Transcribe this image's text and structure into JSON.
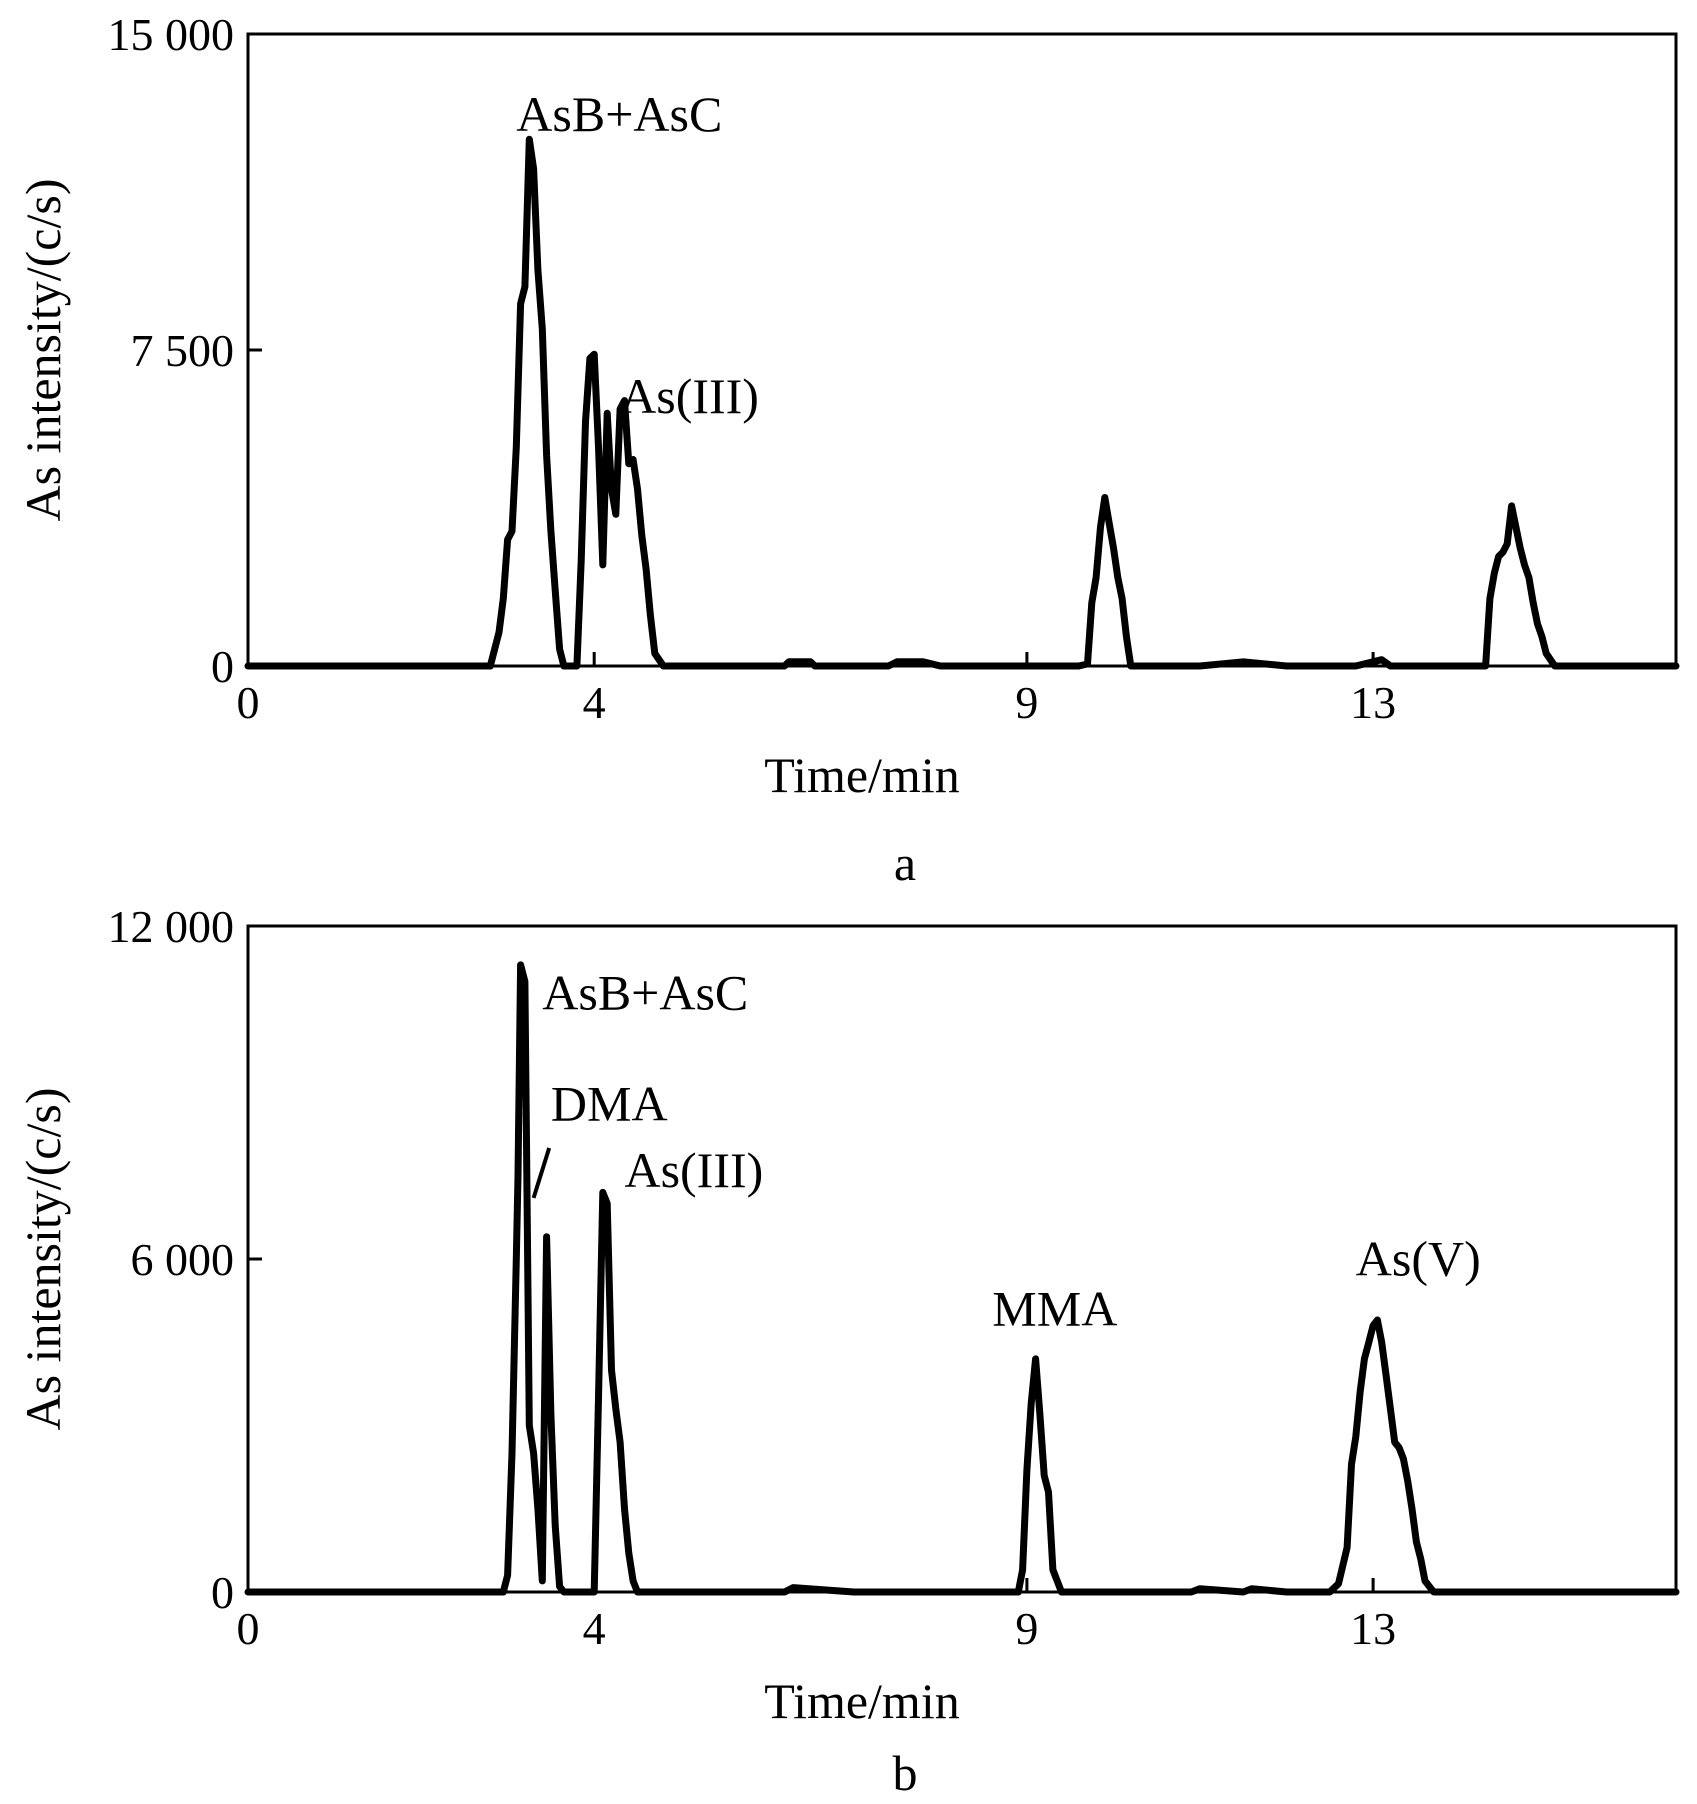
{
  "chart_data": [
    {
      "type": "line",
      "panel_label": "a",
      "xlabel": "Time/min",
      "ylabel": "As intensity/(c/s)",
      "xlim": [
        0,
        16.5
      ],
      "ylim": [
        0,
        15000
      ],
      "xticks": [
        0,
        4,
        9,
        13
      ],
      "xtick_labels": [
        "0",
        "4",
        "9",
        "13"
      ],
      "yticks": [
        0,
        7500,
        15000
      ],
      "ytick_labels": [
        "0",
        "7 500",
        "15 000"
      ],
      "grid": false,
      "legend": "none",
      "annotations": [
        {
          "text": "AsB+AsC",
          "x": 3.1,
          "y": 12700
        },
        {
          "text": "As(III)",
          "x": 4.3,
          "y": 6000
        }
      ],
      "series": [
        {
          "x": [
            0,
            2.8,
            2.9,
            2.95,
            3.0,
            3.05,
            3.1,
            3.15,
            3.2,
            3.25,
            3.3,
            3.35,
            3.4,
            3.45,
            3.5,
            3.55,
            3.6,
            3.65,
            3.7,
            3.8,
            3.85,
            3.9,
            3.95,
            4.0,
            4.05,
            4.1,
            4.15,
            4.2,
            4.25,
            4.3,
            4.35,
            4.4,
            4.45,
            4.5,
            4.55,
            4.6,
            4.65,
            4.7,
            4.8,
            5.0,
            6.2,
            6.25,
            6.5,
            6.55,
            7.0,
            7.4,
            7.5,
            7.8,
            8.0,
            9.0,
            9.6,
            9.7,
            9.75,
            9.8,
            9.85,
            9.9,
            9.95,
            10.0,
            10.05,
            10.1,
            10.15,
            10.2,
            10.3,
            10.5,
            11.0,
            11.5,
            12.0,
            12.8,
            13.0,
            13.1,
            13.2,
            13.5,
            14.0,
            14.3,
            14.35,
            14.4,
            14.45,
            14.5,
            14.55,
            14.6,
            14.65,
            14.7,
            14.75,
            14.8,
            14.85,
            14.9,
            14.95,
            15.0,
            15.1,
            15.2,
            15.5,
            16.0,
            16.5
          ],
          "y": [
            0,
            0,
            800,
            1600,
            3000,
            3200,
            5200,
            8600,
            9000,
            12500,
            11800,
            9400,
            8000,
            5000,
            3200,
            1800,
            400,
            0,
            0,
            0,
            2500,
            5800,
            7300,
            7400,
            5200,
            2400,
            6000,
            4200,
            3600,
            6100,
            6300,
            4800,
            4900,
            4200,
            3100,
            2300,
            1200,
            300,
            0,
            0,
            0,
            100,
            100,
            0,
            0,
            0,
            100,
            100,
            0,
            0,
            0,
            50,
            1500,
            2100,
            3300,
            4000,
            3400,
            2800,
            2100,
            1600,
            700,
            0,
            0,
            0,
            0,
            100,
            0,
            0,
            100,
            150,
            0,
            0,
            0,
            0,
            1600,
            2200,
            2600,
            2700,
            2900,
            3800,
            3300,
            2800,
            2400,
            2100,
            1500,
            1000,
            700,
            300,
            0,
            0,
            0,
            0,
            0
          ]
        }
      ]
    },
    {
      "type": "line",
      "panel_label": "b",
      "xlabel": "Time/min",
      "ylabel": "As intensity/(c/s)",
      "xlim": [
        0,
        16.5
      ],
      "ylim": [
        0,
        12000
      ],
      "xticks": [
        0,
        4,
        9,
        13
      ],
      "xtick_labels": [
        "0",
        "4",
        "9",
        "13"
      ],
      "yticks": [
        0,
        6000,
        12000
      ],
      "ytick_labels": [
        "0",
        "6 000",
        "12 000"
      ],
      "grid": false,
      "legend": "none",
      "annotations": [
        {
          "text": "AsB+AsC",
          "x": 3.4,
          "y": 10500
        },
        {
          "text": "DMA",
          "x": 3.5,
          "y": 8500
        },
        {
          "text": "As(III)",
          "x": 4.35,
          "y": 7300
        },
        {
          "text": "MMA",
          "x": 8.6,
          "y": 4800
        },
        {
          "text": "As(V)",
          "x": 12.8,
          "y": 5700
        }
      ],
      "series": [
        {
          "x": [
            0,
            2.95,
            3.0,
            3.05,
            3.1,
            3.12,
            3.15,
            3.2,
            3.25,
            3.3,
            3.35,
            3.4,
            3.45,
            3.5,
            3.55,
            3.6,
            3.65,
            3.7,
            3.75,
            3.8,
            3.9,
            4.0,
            4.05,
            4.1,
            4.15,
            4.2,
            4.25,
            4.3,
            4.35,
            4.4,
            4.45,
            4.5,
            4.6,
            5.0,
            6.2,
            6.3,
            7.0,
            8.0,
            8.9,
            8.95,
            9.0,
            9.05,
            9.1,
            9.15,
            9.2,
            9.25,
            9.3,
            9.4,
            10.0,
            10.9,
            11.0,
            11.5,
            11.6,
            12.0,
            12.5,
            12.6,
            12.7,
            12.75,
            12.8,
            12.85,
            12.9,
            12.95,
            13.0,
            13.05,
            13.1,
            13.15,
            13.2,
            13.25,
            13.3,
            13.35,
            13.4,
            13.45,
            13.5,
            13.55,
            13.6,
            13.7,
            14.0,
            16.5
          ],
          "y": [
            0,
            0,
            300,
            2500,
            6000,
            7500,
            11300,
            11000,
            3000,
            2500,
            1500,
            200,
            6400,
            3200,
            1200,
            100,
            0,
            0,
            0,
            0,
            0,
            0,
            3500,
            7200,
            7000,
            4000,
            3300,
            2700,
            1500,
            700,
            200,
            0,
            0,
            0,
            0,
            80,
            0,
            0,
            0,
            400,
            2200,
            3400,
            4200,
            3200,
            2100,
            1800,
            400,
            0,
            0,
            0,
            60,
            0,
            60,
            0,
            0,
            150,
            800,
            2300,
            2800,
            3600,
            4200,
            4500,
            4800,
            4900,
            4500,
            3900,
            3300,
            2700,
            2600,
            2400,
            2000,
            1500,
            900,
            600,
            200,
            0,
            0,
            0
          ]
        }
      ]
    }
  ]
}
